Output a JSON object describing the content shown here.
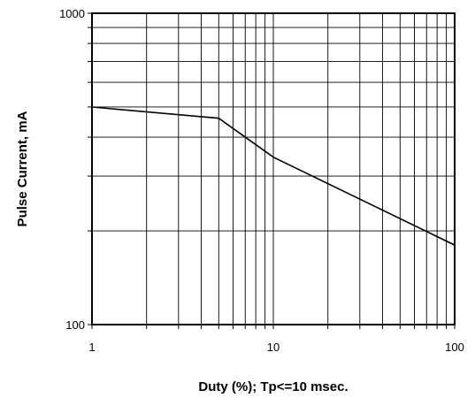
{
  "chart_data": {
    "type": "line",
    "title": "",
    "xlabel": "Duty (%); Tp<=10 msec.",
    "ylabel": "Pulse Current, mA",
    "x_scale": "log",
    "y_scale": "log",
    "xlim": [
      1,
      100
    ],
    "ylim": [
      100,
      1000
    ],
    "x_ticks": [
      {
        "value": 1,
        "label": "1"
      },
      {
        "value": 10,
        "label": "10"
      },
      {
        "value": 100,
        "label": "100"
      }
    ],
    "y_ticks": [
      {
        "value": 100,
        "label": "100"
      },
      {
        "value": 1000,
        "label": "1000"
      }
    ],
    "grid": true,
    "legend": "none",
    "series": [
      {
        "x": [
          1,
          5,
          10,
          100
        ],
        "y": [
          500,
          460,
          345,
          180
        ],
        "color": "#000000"
      }
    ]
  }
}
